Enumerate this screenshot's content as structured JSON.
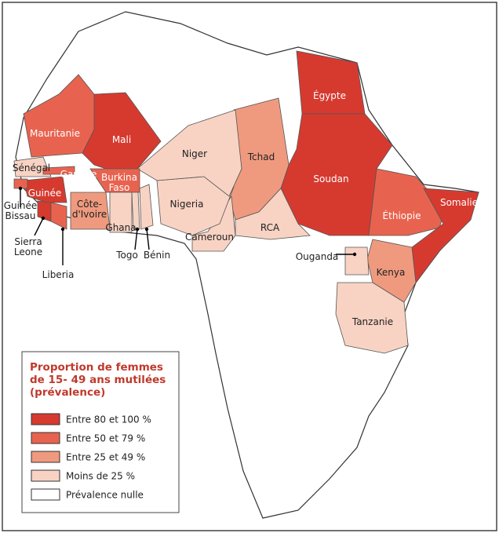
{
  "map": {
    "countries": [
      {
        "label": [
          "Égypte"
        ],
        "level": 0
      },
      {
        "label": [
          "Soudan"
        ],
        "level": 0
      },
      {
        "label": [
          "Éthiopie"
        ],
        "level": 1
      },
      {
        "label": [
          "Somalie"
        ],
        "level": 0
      },
      {
        "label": [
          "Kenya"
        ],
        "level": 2
      },
      {
        "label": [
          "Tanzanie"
        ],
        "level": 3
      },
      {
        "label": [
          "Ouganda"
        ],
        "level": 3
      },
      {
        "label": [
          "Tchad"
        ],
        "level": 2
      },
      {
        "label": [
          "RCA"
        ],
        "level": 3
      },
      {
        "label": [
          "Cameroun"
        ],
        "level": 3
      },
      {
        "label": [
          "Nigeria"
        ],
        "level": 3
      },
      {
        "label": [
          "Niger"
        ],
        "level": 3
      },
      {
        "label": [
          "Mali"
        ],
        "level": 0
      },
      {
        "label": [
          "Mauritanie"
        ],
        "level": 1
      },
      {
        "label": [
          "Sénégal"
        ],
        "level": 3
      },
      {
        "label": [
          "Gambie"
        ],
        "level": 1
      },
      {
        "label": [
          "Guinée"
        ],
        "level": 0
      },
      {
        "label": [
          "Guinée",
          "Bissau"
        ],
        "level": 1
      },
      {
        "label": [
          "Sierra",
          "Leone"
        ],
        "level": 0
      },
      {
        "label": [
          "Liberia"
        ],
        "level": 1
      },
      {
        "label": [
          "Côte-",
          "d'Ivoire"
        ],
        "level": 2
      },
      {
        "label": [
          "Burkina",
          "Faso"
        ],
        "level": 1
      },
      {
        "label": [
          "Ghana"
        ],
        "level": 3
      },
      {
        "label": [
          "Togo"
        ],
        "level": 3
      },
      {
        "label": [
          "Bénin"
        ],
        "level": 3
      }
    ]
  },
  "legend": {
    "title": [
      "Proportion de femmes",
      "de 15- 49 ans mutilées",
      "(prévalence)"
    ],
    "items": [
      {
        "label": "Entre 80 et 100 %",
        "color": "#d63a2f"
      },
      {
        "label": "Entre 50 et 79 %",
        "color": "#e8634f"
      },
      {
        "label": "Entre 25 et 49 %",
        "color": "#ef9a7f"
      },
      {
        "label": "Moins de 25 %",
        "color": "#f8d3c3"
      },
      {
        "label": "Prévalence nulle",
        "color": "#ffffff"
      }
    ]
  }
}
